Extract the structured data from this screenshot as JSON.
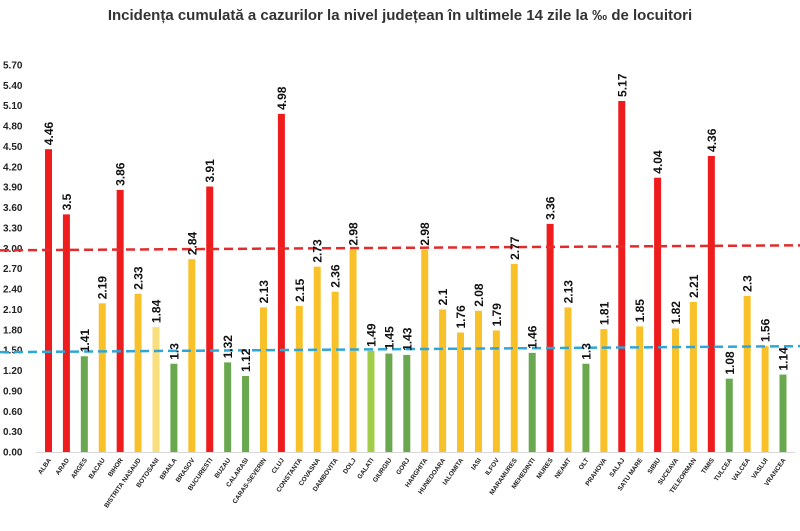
{
  "chart_data": {
    "type": "bar",
    "title": "Incidența cumulată a cazurilor la nivel județean în ultimele 14 zile la ‰ de locuitori",
    "xlabel": "",
    "ylabel": "",
    "ylim": [
      0,
      5.7
    ],
    "yticks": [
      "0.00",
      "0.30",
      "0.60",
      "0.90",
      "1.20",
      "1.50",
      "1.80",
      "2.10",
      "2.40",
      "2.70",
      "3.00",
      "3.30",
      "3.60",
      "3.90",
      "4.20",
      "4.50",
      "4.80",
      "5.10",
      "5.40",
      "5.70"
    ],
    "grid": false,
    "legend": "none",
    "colors": {
      "red": "#ee1c1c",
      "yellow": "#f8c12a",
      "pale_yellow": "#f9df7c",
      "green": "#6aa84f",
      "light_green": "#a2cd48"
    },
    "reference_lines": [
      {
        "value": 3.0,
        "color": "#e32b2b",
        "style": "dashed"
      },
      {
        "value": 1.5,
        "color": "#2fa6d8",
        "style": "dashed"
      }
    ],
    "categories": [
      "ALBA",
      "ARAD",
      "ARGES",
      "BACAU",
      "BIHOR",
      "BISTRITA NASAUD",
      "BOTOSANI",
      "BRAILA",
      "BRASOV",
      "BUCURESTI",
      "BUZAU",
      "CALARASI",
      "CARAS-SEVERIN",
      "CLUJ",
      "CONSTANTA",
      "COVASNA",
      "DAMBOVITA",
      "DOLJ",
      "GALATI",
      "GIURGIU",
      "GORJ",
      "HARGHITA",
      "HUNEDOARA",
      "IALOMITA",
      "IASI",
      "ILFOV",
      "MARAMURES",
      "MEHEDINTI",
      "MURES",
      "NEAMT",
      "OLT",
      "PRAHOVA",
      "SALAJ",
      "SATU MARE",
      "SIBIU",
      "SUCEAVA",
      "TELEORMAN",
      "TIMIS",
      "TULCEA",
      "VALCEA",
      "VASLUI",
      "VRANCEA"
    ],
    "values": [
      4.46,
      3.5,
      1.41,
      2.19,
      3.86,
      2.33,
      1.84,
      1.3,
      2.84,
      3.91,
      1.32,
      1.12,
      2.13,
      4.98,
      2.15,
      2.73,
      2.36,
      2.98,
      1.49,
      1.45,
      1.43,
      2.98,
      2.1,
      1.76,
      2.08,
      1.79,
      2.77,
      1.46,
      3.36,
      2.13,
      1.3,
      1.81,
      5.17,
      1.85,
      4.04,
      1.82,
      2.21,
      4.36,
      1.08,
      2.3,
      1.56,
      1.14
    ],
    "bar_colors": [
      "red",
      "red",
      "green",
      "yellow",
      "red",
      "yellow",
      "pale_yellow",
      "green",
      "yellow",
      "red",
      "green",
      "green",
      "yellow",
      "red",
      "yellow",
      "yellow",
      "yellow",
      "yellow",
      "light_green",
      "green",
      "green",
      "yellow",
      "yellow",
      "yellow",
      "yellow",
      "yellow",
      "yellow",
      "green",
      "red",
      "yellow",
      "green",
      "yellow",
      "red",
      "yellow",
      "red",
      "yellow",
      "yellow",
      "red",
      "green",
      "yellow",
      "yellow",
      "green"
    ],
    "data_labels": [
      "4.46",
      "3.5",
      "1.41",
      "2.19",
      "3.86",
      "2.33",
      "1.84",
      "1.3",
      "2.84",
      "3.91",
      "1.32",
      "1.12",
      "2.13",
      "4.98",
      "2.15",
      "2.73",
      "2.36",
      "2.98",
      "1.49",
      "1.45",
      "1.43",
      "2.98",
      "2.1",
      "1.76",
      "2.08",
      "1.79",
      "2.77",
      "1.46",
      "3.36",
      "2.13",
      "1.3",
      "1.81",
      "5.17",
      "1.85",
      "4.04",
      "1.82",
      "2.21",
      "4.36",
      "1.08",
      "2.3",
      "1.56",
      "1.14"
    ]
  }
}
